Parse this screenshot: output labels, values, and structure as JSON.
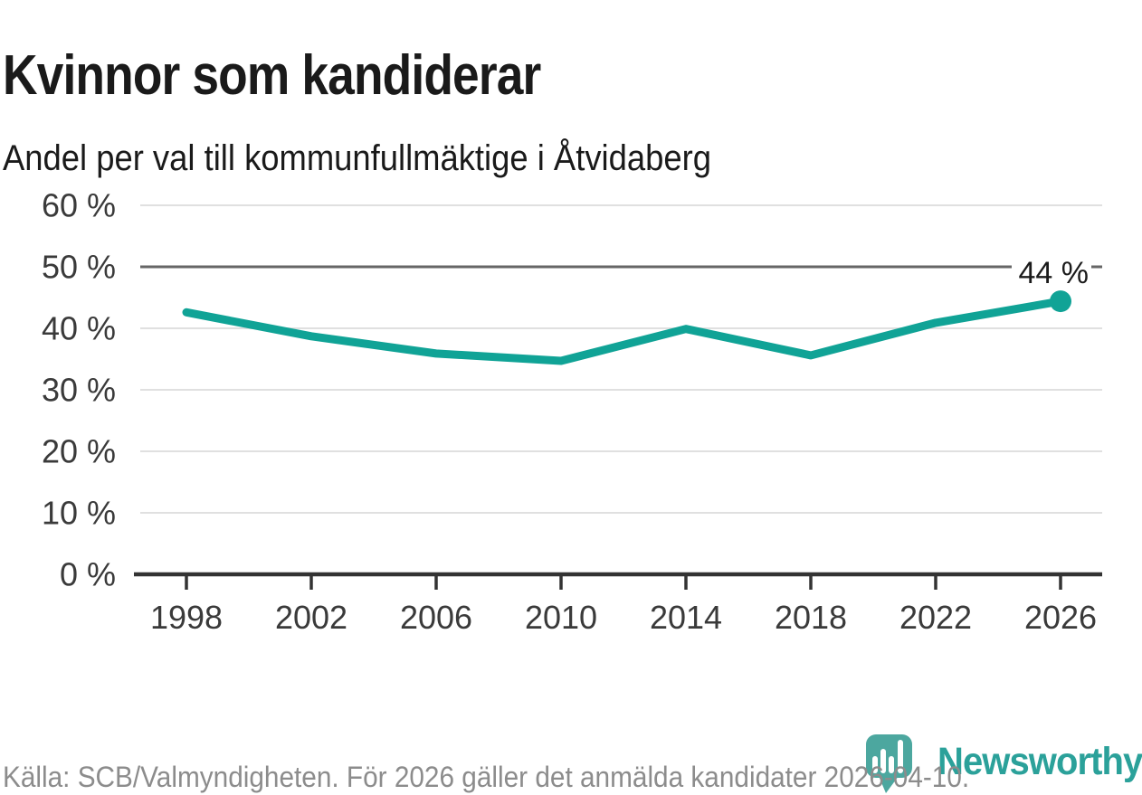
{
  "chart_data": {
    "type": "line",
    "title": "Kvinnor som kandiderar",
    "subtitle": "Andel per val till kommunfullmäktige i Åtvidaberg",
    "categories": [
      1998,
      2002,
      2006,
      2010,
      2014,
      2018,
      2022,
      2026
    ],
    "values": [
      42.6,
      38.7,
      35.9,
      34.7,
      39.9,
      35.6,
      40.9,
      44.4
    ],
    "xlabel": "",
    "ylabel": "",
    "ylim": [
      0,
      60
    ],
    "yticks": [
      0,
      10,
      20,
      30,
      40,
      50,
      60
    ],
    "ytick_suffix": " %",
    "grid": true,
    "legend": "none",
    "reference_value": 50,
    "end_label": "44 %",
    "colors": {
      "line": "#10a396",
      "grid": "#e0e0e0",
      "reference_line": "#666666",
      "axis": "#333333",
      "tick_label": "#3a3a3a",
      "end_label": "#1b1b1b"
    }
  },
  "footer": {
    "source": "Källa: SCB/Valmyndigheten. För 2026 gäller det anmälda kandidater 2026-04-10."
  },
  "logo": {
    "wordmark": "Newsworthy",
    "icon": "newsworthy-pin-barchart-icon",
    "brand_color": "#2ba19a",
    "icon_color": "#4ca79f"
  }
}
